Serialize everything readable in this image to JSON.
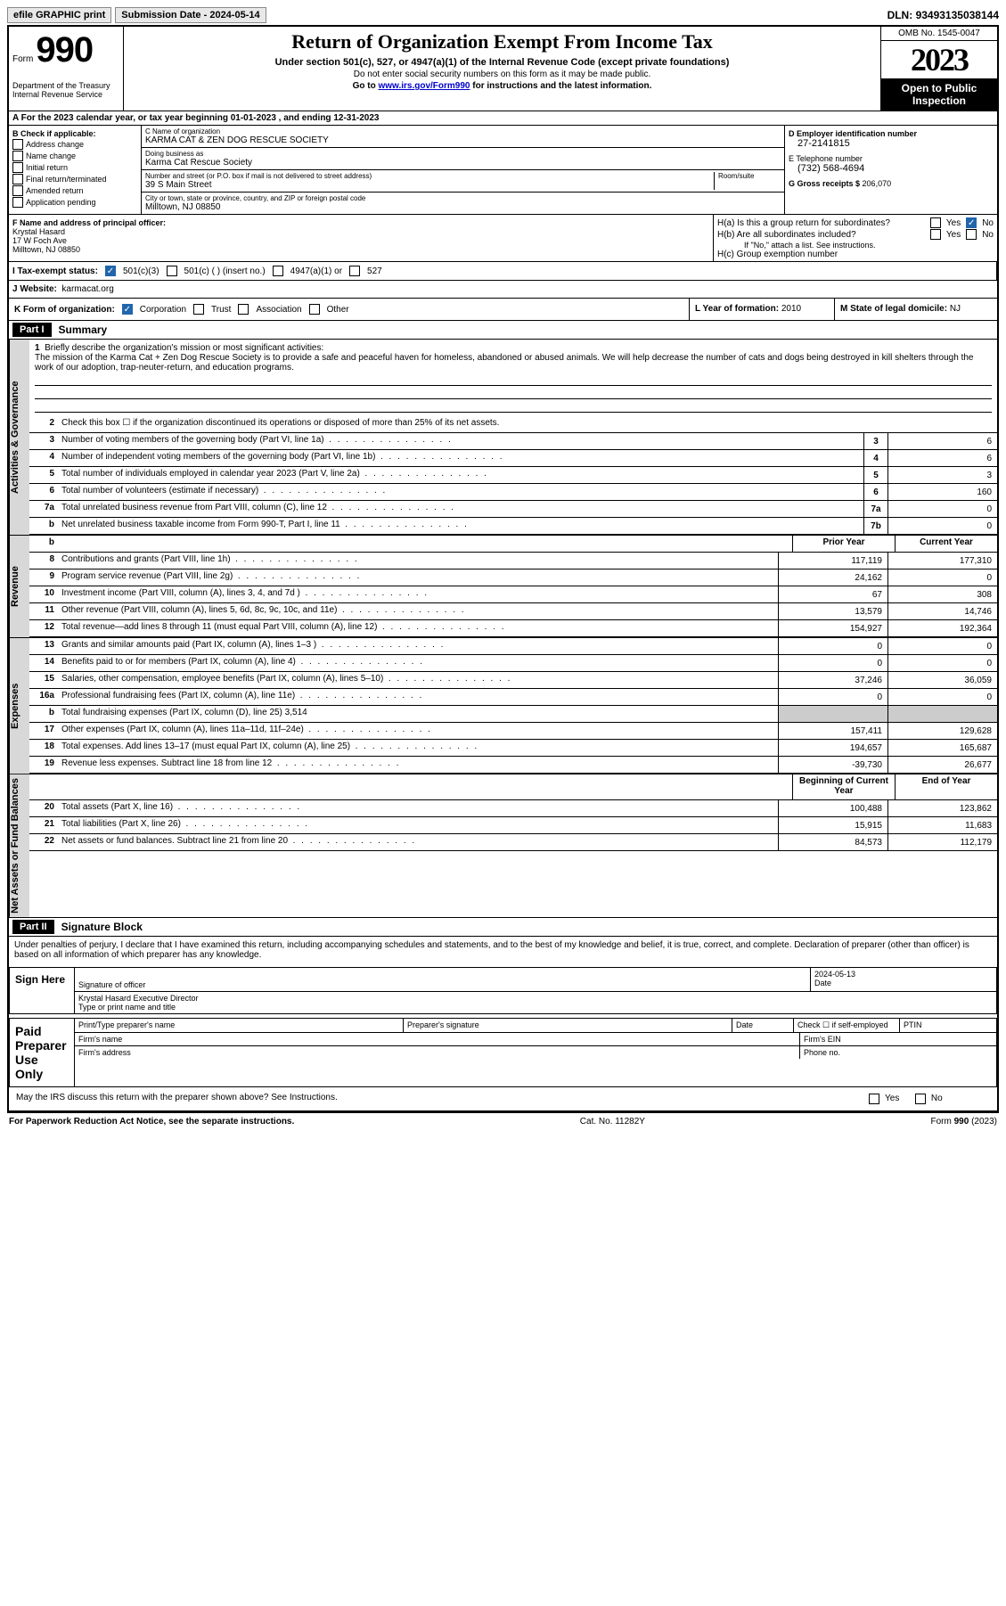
{
  "topbar": {
    "efile": "efile GRAPHIC print",
    "subdate_lbl": "Submission Date - ",
    "subdate": "2024-05-14",
    "dln_lbl": "DLN: ",
    "dln": "93493135038144"
  },
  "header": {
    "form_lbl": "Form",
    "form_num": "990",
    "dept": "Department of the Treasury\nInternal Revenue Service",
    "title": "Return of Organization Exempt From Income Tax",
    "sub": "Under section 501(c), 527, or 4947(a)(1) of the Internal Revenue Code (except private foundations)",
    "note1": "Do not enter social security numbers on this form as it may be made public.",
    "note2_pre": "Go to ",
    "note2_link": "www.irs.gov/Form990",
    "note2_post": " for instructions and the latest information.",
    "omb": "OMB No. 1545-0047",
    "year": "2023",
    "open": "Open to Public Inspection"
  },
  "row_a": "A For the 2023 calendar year, or tax year beginning 01-01-2023   , and ending 12-31-2023",
  "col_b": {
    "hdr": "B Check if applicable:",
    "items": [
      "Address change",
      "Name change",
      "Initial return",
      "Final return/terminated",
      "Amended return",
      "Application pending"
    ]
  },
  "col_c": {
    "name_lbl": "C Name of organization",
    "name": "KARMA CAT & ZEN DOG RESCUE SOCIETY",
    "dba_lbl": "Doing business as",
    "dba": "Karma Cat Rescue Society",
    "street_lbl": "Number and street (or P.O. box if mail is not delivered to street address)",
    "room_lbl": "Room/suite",
    "street": "39 S Main Street",
    "city_lbl": "City or town, state or province, country, and ZIP or foreign postal code",
    "city": "Milltown, NJ  08850"
  },
  "col_d": {
    "ein_lbl": "D Employer identification number",
    "ein": "27-2141815",
    "tel_lbl": "E Telephone number",
    "tel": "(732) 568-4694",
    "gross_lbl": "G Gross receipts $ ",
    "gross": "206,070"
  },
  "col_f": {
    "lbl": "F  Name and address of principal officer:",
    "name": "Krystal Hasard",
    "addr1": "17 W Foch Ave",
    "addr2": "Milltown, NJ  08850"
  },
  "col_h": {
    "a": "H(a)  Is this a group return for subordinates?",
    "b": "H(b)  Are all subordinates included?",
    "b_note": "If \"No,\" attach a list. See instructions.",
    "c": "H(c)  Group exemption number",
    "yes": "Yes",
    "no": "No"
  },
  "row_i": {
    "lbl": "I   Tax-exempt status:",
    "c3": "501(c)(3)",
    "c": "501(c) (  ) (insert no.)",
    "a1": "4947(a)(1) or",
    "s527": "527"
  },
  "row_j": {
    "lbl": "J   Website:",
    "val": "karmacat.org"
  },
  "row_k": {
    "lbl": "K Form of organization:",
    "corp": "Corporation",
    "trust": "Trust",
    "assoc": "Association",
    "other": "Other"
  },
  "row_l": {
    "lbl": "L Year of formation: ",
    "val": "2010"
  },
  "row_m": {
    "lbl": "M State of legal domicile: ",
    "val": "NJ"
  },
  "part1": {
    "hdr": "Part I",
    "title": "Summary"
  },
  "vtabs": {
    "gov": "Activities & Governance",
    "rev": "Revenue",
    "exp": "Expenses",
    "net": "Net Assets or Fund Balances"
  },
  "mission": {
    "num": "1",
    "lbl": "Briefly describe the organization's mission or most significant activities:",
    "text": "The mission of the Karma Cat + Zen Dog Rescue Society is to provide a safe and peaceful haven for homeless, abandoned or abused animals. We will help decrease the number of cats and dogs being destroyed in kill shelters through the work of our adoption, trap-neuter-return, and education programs."
  },
  "gov_lines": [
    {
      "n": "2",
      "t": "Check this box ☐ if the organization discontinued its operations or disposed of more than 25% of its net assets."
    },
    {
      "n": "3",
      "t": "Number of voting members of the governing body (Part VI, line 1a)",
      "box": "3",
      "v": "6"
    },
    {
      "n": "4",
      "t": "Number of independent voting members of the governing body (Part VI, line 1b)",
      "box": "4",
      "v": "6"
    },
    {
      "n": "5",
      "t": "Total number of individuals employed in calendar year 2023 (Part V, line 2a)",
      "box": "5",
      "v": "3"
    },
    {
      "n": "6",
      "t": "Total number of volunteers (estimate if necessary)",
      "box": "6",
      "v": "160"
    },
    {
      "n": "7a",
      "t": "Total unrelated business revenue from Part VIII, column (C), line 12",
      "box": "7a",
      "v": "0"
    },
    {
      "n": "b",
      "t": "Net unrelated business taxable income from Form 990-T, Part I, line 11",
      "box": "7b",
      "v": "0"
    }
  ],
  "yr_hdr": {
    "prior": "Prior Year",
    "current": "Current Year",
    "beg": "Beginning of Current Year",
    "end": "End of Year"
  },
  "rev_lines": [
    {
      "n": "8",
      "t": "Contributions and grants (Part VIII, line 1h)",
      "p": "117,119",
      "c": "177,310"
    },
    {
      "n": "9",
      "t": "Program service revenue (Part VIII, line 2g)",
      "p": "24,162",
      "c": "0"
    },
    {
      "n": "10",
      "t": "Investment income (Part VIII, column (A), lines 3, 4, and 7d )",
      "p": "67",
      "c": "308"
    },
    {
      "n": "11",
      "t": "Other revenue (Part VIII, column (A), lines 5, 6d, 8c, 9c, 10c, and 11e)",
      "p": "13,579",
      "c": "14,746"
    },
    {
      "n": "12",
      "t": "Total revenue—add lines 8 through 11 (must equal Part VIII, column (A), line 12)",
      "p": "154,927",
      "c": "192,364"
    }
  ],
  "exp_lines": [
    {
      "n": "13",
      "t": "Grants and similar amounts paid (Part IX, column (A), lines 1–3 )",
      "p": "0",
      "c": "0"
    },
    {
      "n": "14",
      "t": "Benefits paid to or for members (Part IX, column (A), line 4)",
      "p": "0",
      "c": "0"
    },
    {
      "n": "15",
      "t": "Salaries, other compensation, employee benefits (Part IX, column (A), lines 5–10)",
      "p": "37,246",
      "c": "36,059"
    },
    {
      "n": "16a",
      "t": "Professional fundraising fees (Part IX, column (A), line 11e)",
      "p": "0",
      "c": "0"
    },
    {
      "n": "b",
      "t": "Total fundraising expenses (Part IX, column (D), line 25) 3,514",
      "shade": true
    },
    {
      "n": "17",
      "t": "Other expenses (Part IX, column (A), lines 11a–11d, 11f–24e)",
      "p": "157,411",
      "c": "129,628"
    },
    {
      "n": "18",
      "t": "Total expenses. Add lines 13–17 (must equal Part IX, column (A), line 25)",
      "p": "194,657",
      "c": "165,687"
    },
    {
      "n": "19",
      "t": "Revenue less expenses. Subtract line 18 from line 12",
      "p": "-39,730",
      "c": "26,677"
    }
  ],
  "net_lines": [
    {
      "n": "20",
      "t": "Total assets (Part X, line 16)",
      "p": "100,488",
      "c": "123,862"
    },
    {
      "n": "21",
      "t": "Total liabilities (Part X, line 26)",
      "p": "15,915",
      "c": "11,683"
    },
    {
      "n": "22",
      "t": "Net assets or fund balances. Subtract line 21 from line 20",
      "p": "84,573",
      "c": "112,179"
    }
  ],
  "part2": {
    "hdr": "Part II",
    "title": "Signature Block",
    "perjury": "Under penalties of perjury, I declare that I have examined this return, including accompanying schedules and statements, and to the best of my knowledge and belief, it is true, correct, and complete. Declaration of preparer (other than officer) is based on all information of which preparer has any knowledge."
  },
  "sign": {
    "here": "Sign Here",
    "sig_lbl": "Signature of officer",
    "date_lbl": "Date",
    "date": "2024-05-13",
    "name": "Krystal Hasard  Executive Director",
    "type_lbl": "Type or print name and title"
  },
  "paid": {
    "lbl": "Paid Preparer Use Only",
    "pname": "Print/Type preparer's name",
    "psig": "Preparer's signature",
    "pdate": "Date",
    "pchk": "Check ☐ if self-employed",
    "ptin": "PTIN",
    "fname": "Firm's name",
    "fein": "Firm's EIN",
    "faddr": "Firm's address",
    "fphone": "Phone no."
  },
  "irs_q": "May the IRS discuss this return with the preparer shown above? See Instructions.",
  "foot": {
    "pra": "For Paperwork Reduction Act Notice, see the separate instructions.",
    "cat": "Cat. No. 11282Y",
    "form": "Form 990 (2023)"
  }
}
